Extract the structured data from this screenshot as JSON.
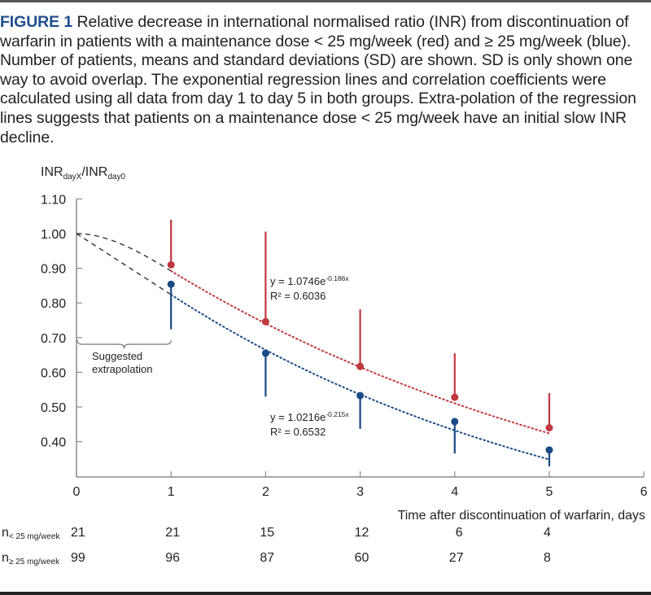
{
  "caption": {
    "label": "FIGURE 1",
    "text": "Relative decrease in international normalised ratio (INR) from discontinuation of warfarin in patients with a maintenance dose < 25 mg/week (red) and ≥ 25 mg/week (blue). Number of patients, means and standard deviations (SD) are shown. SD is only shown one way to avoid overlap. The exponential regression lines and correlation coefficients were calculated using all data from day 1 to day 5 in both groups. Extra-polation of the regression lines suggests that patients on a maintenance dose < 25 mg/week have an initial slow INR decline."
  },
  "chart_data": {
    "type": "scatter",
    "title": "",
    "ylabel": {
      "main": "INR",
      "sub1": "dayX",
      "sep": "/INR",
      "sub2": "day0"
    },
    "xlabel": "Time after discontinuation of warfarin, days",
    "xlim": [
      0,
      6
    ],
    "ylim": [
      0.3,
      1.1
    ],
    "xticks": [
      "0",
      "1",
      "2",
      "3",
      "4",
      "5",
      "6"
    ],
    "yticks": [
      "1.10",
      "1.00",
      "0.90",
      "0.80",
      "0.70",
      "0.60",
      "0.50",
      "0.40"
    ],
    "ytick_values": [
      1.1,
      1.0,
      0.9,
      0.8,
      0.7,
      0.6,
      0.5,
      0.4
    ],
    "grid": false,
    "series": [
      {
        "name": "< 25 mg/week",
        "color": "#c0393f",
        "x": [
          1,
          2,
          3,
          4,
          5
        ],
        "mean": [
          0.91,
          0.746,
          0.617,
          0.528,
          0.44
        ],
        "sd": [
          0.13,
          0.26,
          0.165,
          0.127,
          0.1
        ],
        "sd_direction": "up",
        "regression": {
          "a": 1.0746,
          "b": -0.186,
          "equation_prefix": "y = 1.0746e",
          "equation_exp": "-0.186x",
          "r2": "R² = 0.6036"
        }
      },
      {
        "name": "≥ 25 mg/week",
        "color": "#1a4a85",
        "x": [
          1,
          2,
          3,
          4,
          5
        ],
        "mean": [
          0.854,
          0.655,
          0.533,
          0.458,
          0.376
        ],
        "sd": [
          0.13,
          0.125,
          0.096,
          0.092,
          0.047
        ],
        "sd_direction": "down",
        "regression": {
          "a": 1.0216,
          "b": -0.215,
          "equation_prefix": "y = 1.0216e",
          "equation_exp": "-0.215x",
          "r2": "R² = 0.6532"
        }
      }
    ],
    "extrapolation_label": [
      "Suggested",
      "extrapolation"
    ]
  },
  "counts": {
    "rows": [
      {
        "label_main": "n",
        "label_sub": "< 25 mg/week",
        "values": [
          "21",
          "21",
          "15",
          "12",
          "6",
          "4"
        ]
      },
      {
        "label_main": "n",
        "label_sub": "≥ 25 mg/week",
        "values": [
          "99",
          "96",
          "87",
          "60",
          "27",
          "8"
        ]
      }
    ]
  }
}
